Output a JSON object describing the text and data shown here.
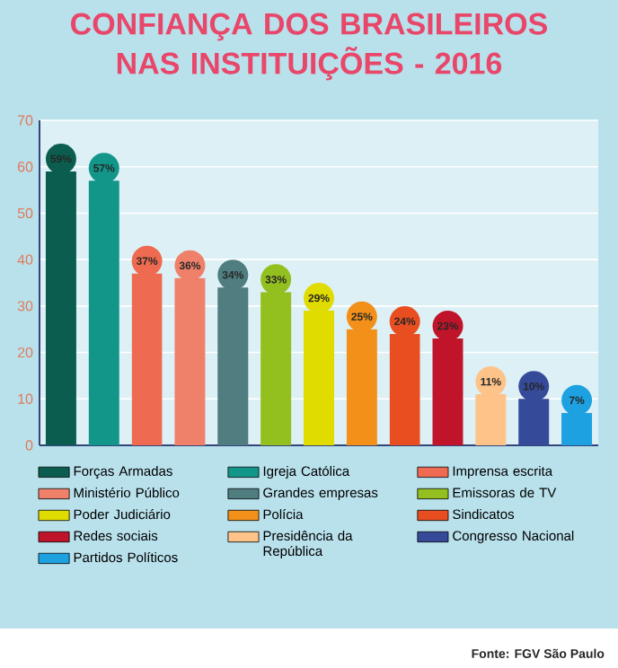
{
  "chart_data": {
    "type": "bar",
    "title": "CONFIANÇA DOS BRASILEIROS NAS INSTITUIÇÕES - 2016",
    "categories": [
      null,
      null,
      null,
      null,
      null,
      null,
      null,
      null,
      null,
      null,
      null,
      null,
      null
    ],
    "series": [
      {
        "name": "Forças Armadas",
        "color": "#0b5e4f",
        "values": [
          59,
          null,
          null,
          null,
          null,
          null,
          null,
          null,
          null,
          null,
          null,
          null,
          null
        ],
        "value_labels": [
          "59%",
          null,
          null,
          null,
          null,
          null,
          null,
          null,
          null,
          null,
          null,
          null,
          null
        ]
      },
      {
        "name": "Igreja Católica",
        "color": "#12968a",
        "values": [
          null,
          57,
          null,
          null,
          null,
          null,
          null,
          null,
          null,
          null,
          null,
          null,
          null
        ],
        "value_labels": [
          null,
          "57%",
          null,
          null,
          null,
          null,
          null,
          null,
          null,
          null,
          null,
          null,
          null
        ]
      },
      {
        "name": "Imprensa escrita",
        "color": "#ee6a50",
        "values": [
          null,
          null,
          37,
          null,
          null,
          null,
          null,
          null,
          null,
          null,
          null,
          null,
          null
        ],
        "value_labels": [
          null,
          null,
          "37%",
          null,
          null,
          null,
          null,
          null,
          null,
          null,
          null,
          null,
          null
        ]
      },
      {
        "name": "Ministério Público",
        "color": "#ef8069",
        "values": [
          null,
          null,
          null,
          36,
          null,
          null,
          null,
          null,
          null,
          null,
          null,
          null,
          null
        ],
        "value_labels": [
          null,
          null,
          null,
          "36%",
          null,
          null,
          null,
          null,
          null,
          null,
          null,
          null,
          null
        ]
      },
      {
        "name": "Grandes empresas",
        "color": "#4f7d80",
        "values": [
          null,
          null,
          null,
          null,
          34,
          null,
          null,
          null,
          null,
          null,
          null,
          null,
          null
        ],
        "value_labels": [
          null,
          null,
          null,
          null,
          "34%",
          null,
          null,
          null,
          null,
          null,
          null,
          null,
          null
        ]
      },
      {
        "name": "Emissoras de TV",
        "color": "#93bf1f",
        "values": [
          null,
          null,
          null,
          null,
          null,
          33,
          null,
          null,
          null,
          null,
          null,
          null,
          null
        ],
        "value_labels": [
          null,
          null,
          null,
          null,
          null,
          "33%",
          null,
          null,
          null,
          null,
          null,
          null,
          null
        ]
      },
      {
        "name": "Poder Judiciário",
        "color": "#e0dc00",
        "values": [
          null,
          null,
          null,
          null,
          null,
          null,
          29,
          null,
          null,
          null,
          null,
          null,
          null
        ],
        "value_labels": [
          null,
          null,
          null,
          null,
          null,
          null,
          "29%",
          null,
          null,
          null,
          null,
          null,
          null
        ]
      },
      {
        "name": "Polícia",
        "color": "#f39019",
        "values": [
          null,
          null,
          null,
          null,
          null,
          null,
          null,
          25,
          null,
          null,
          null,
          null,
          null
        ],
        "value_labels": [
          null,
          null,
          null,
          null,
          null,
          null,
          null,
          "25%",
          null,
          null,
          null,
          null,
          null
        ]
      },
      {
        "name": "Sindicatos",
        "color": "#e84e1f",
        "values": [
          null,
          null,
          null,
          null,
          null,
          null,
          null,
          null,
          24,
          null,
          null,
          null,
          null
        ],
        "value_labels": [
          null,
          null,
          null,
          null,
          null,
          null,
          null,
          null,
          "24%",
          null,
          null,
          null,
          null
        ]
      },
      {
        "name": "Redes sociais",
        "color": "#c0142a",
        "values": [
          null,
          null,
          null,
          null,
          null,
          null,
          null,
          null,
          null,
          23,
          null,
          null,
          null
        ],
        "value_labels": [
          null,
          null,
          null,
          null,
          null,
          null,
          null,
          null,
          null,
          "23%",
          null,
          null,
          null
        ]
      },
      {
        "name": "Presidência da República",
        "color": "#fdc388",
        "values": [
          null,
          null,
          null,
          null,
          null,
          null,
          null,
          null,
          null,
          null,
          11,
          null,
          null
        ],
        "value_labels": [
          null,
          null,
          null,
          null,
          null,
          null,
          null,
          null,
          null,
          null,
          "11%",
          null,
          null
        ]
      },
      {
        "name": "Congresso Nacional",
        "color": "#364a9a",
        "values": [
          null,
          null,
          null,
          null,
          null,
          null,
          null,
          null,
          null,
          null,
          null,
          10,
          null
        ],
        "value_labels": [
          null,
          null,
          null,
          null,
          null,
          null,
          null,
          null,
          null,
          null,
          null,
          "10%",
          null
        ]
      },
      {
        "name": "Partidos Políticos",
        "color": "#1ea1e0",
        "values": [
          null,
          null,
          null,
          null,
          null,
          null,
          null,
          null,
          null,
          null,
          null,
          null,
          7
        ],
        "value_labels": [
          null,
          null,
          null,
          null,
          null,
          null,
          null,
          null,
          null,
          null,
          null,
          null,
          "7%"
        ]
      }
    ],
    "ylim": [
      0,
      70
    ],
    "yticks": [
      0,
      10,
      20,
      30,
      40,
      50,
      60,
      70
    ],
    "grid": "y",
    "legend": "bottom",
    "tick_labels": "y",
    "annotations": [
      "Fonte: FGV São Paulo"
    ]
  }
}
